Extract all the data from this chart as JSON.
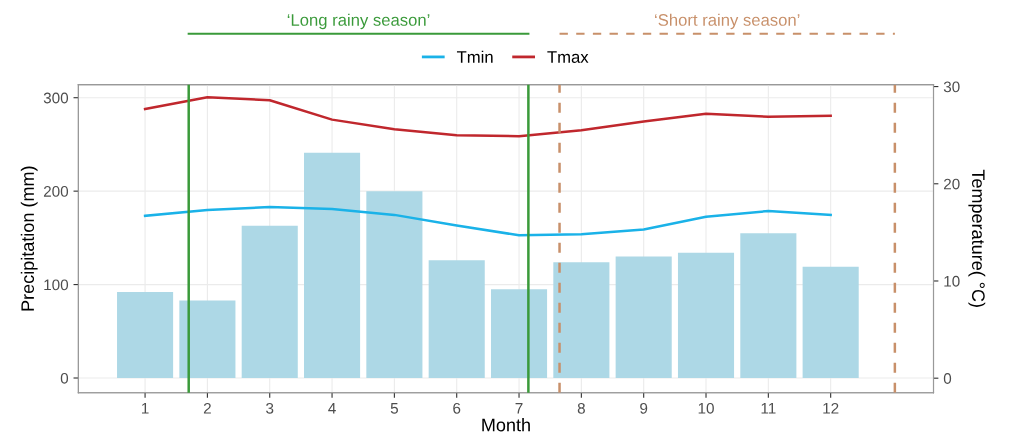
{
  "chart_data": {
    "type": "bar",
    "xlabel": "Month",
    "ylabel": "Precipitation (mm)",
    "y2label": "Temperature( °C)",
    "x": [
      1,
      2,
      3,
      4,
      5,
      6,
      7,
      8,
      9,
      10,
      11,
      12
    ],
    "xlim": [
      -0.07,
      13.65
    ],
    "xticks": [
      1,
      2,
      3,
      4,
      5,
      6,
      7,
      8,
      9,
      10,
      11,
      12
    ],
    "ylim": [
      -15.8,
      314
    ],
    "yticks": [
      0,
      100,
      200,
      300
    ],
    "y2lim": [
      -1.5,
      30.2
    ],
    "y2ticks": [
      0,
      10,
      20,
      30
    ],
    "series": [
      {
        "color": "#add8e6",
        "values": [
          92,
          83,
          163,
          241,
          200,
          126,
          95,
          124,
          130,
          134,
          155,
          119
        ]
      },
      {
        "type": "line",
        "name": "Tmin",
        "axis": "y2",
        "color": "#1ab2e8",
        "values": [
          16.7,
          17.3,
          17.6,
          17.4,
          16.8,
          15.7,
          14.7,
          14.8,
          15.3,
          16.6,
          17.2,
          16.8
        ]
      },
      {
        "type": "line",
        "name": "Tmax",
        "axis": "y2",
        "color": "#c0272d",
        "values": [
          27.7,
          28.9,
          28.6,
          26.6,
          25.6,
          25.0,
          24.9,
          25.5,
          26.4,
          27.2,
          26.9,
          27.0
        ]
      }
    ],
    "ref_lines": [
      {
        "axis": "x",
        "value": 1.7,
        "color": "#3a9a3a",
        "line_style": "solid"
      },
      {
        "axis": "x",
        "value": 7.15,
        "color": "#3a9a3a",
        "line_style": "solid"
      },
      {
        "axis": "x",
        "value": 7.65,
        "color": "#c8906a",
        "line_style": "dashed"
      },
      {
        "axis": "x",
        "value": 13.03,
        "color": "#c8906a",
        "line_style": "dashed"
      }
    ],
    "annotations": [
      "‘Long rainy season’",
      "‘Short rainy season’"
    ],
    "grid": true,
    "legend": "top",
    "marker": "none",
    "line_style": "solid"
  }
}
